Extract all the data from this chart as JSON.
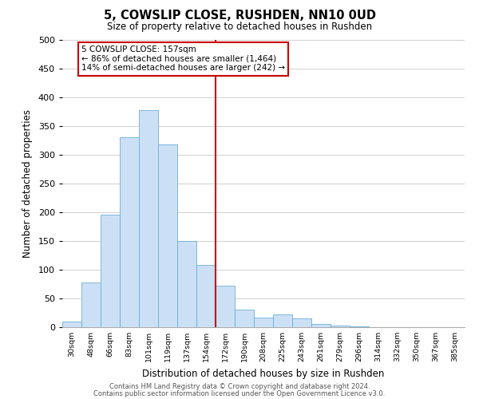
{
  "title": "5, COWSLIP CLOSE, RUSHDEN, NN10 0UD",
  "subtitle": "Size of property relative to detached houses in Rushden",
  "xlabel": "Distribution of detached houses by size in Rushden",
  "ylabel": "Number of detached properties",
  "bin_labels": [
    "30sqm",
    "48sqm",
    "66sqm",
    "83sqm",
    "101sqm",
    "119sqm",
    "137sqm",
    "154sqm",
    "172sqm",
    "190sqm",
    "208sqm",
    "225sqm",
    "243sqm",
    "261sqm",
    "279sqm",
    "296sqm",
    "314sqm",
    "332sqm",
    "350sqm",
    "367sqm",
    "385sqm"
  ],
  "bar_values": [
    10,
    78,
    196,
    330,
    378,
    318,
    150,
    108,
    72,
    30,
    17,
    22,
    15,
    5,
    3,
    1,
    0,
    0,
    0,
    0,
    0
  ],
  "bar_color": "#cce0f5",
  "bar_edge_color": "#6baed6",
  "vline_x_index": 7.5,
  "vline_color": "#cc0000",
  "annotation_line1": "5 COWSLIP CLOSE: 157sqm",
  "annotation_line2": "← 86% of detached houses are smaller (1,464)",
  "annotation_line3": "14% of semi-detached houses are larger (242) →",
  "annotation_box_edge": "#cc0000",
  "ylim": [
    0,
    500
  ],
  "yticks": [
    0,
    50,
    100,
    150,
    200,
    250,
    300,
    350,
    400,
    450,
    500
  ],
  "footer_line1": "Contains HM Land Registry data © Crown copyright and database right 2024.",
  "footer_line2": "Contains public sector information licensed under the Open Government Licence v3.0.",
  "bg_color": "#ffffff",
  "grid_color": "#d0d0d0"
}
